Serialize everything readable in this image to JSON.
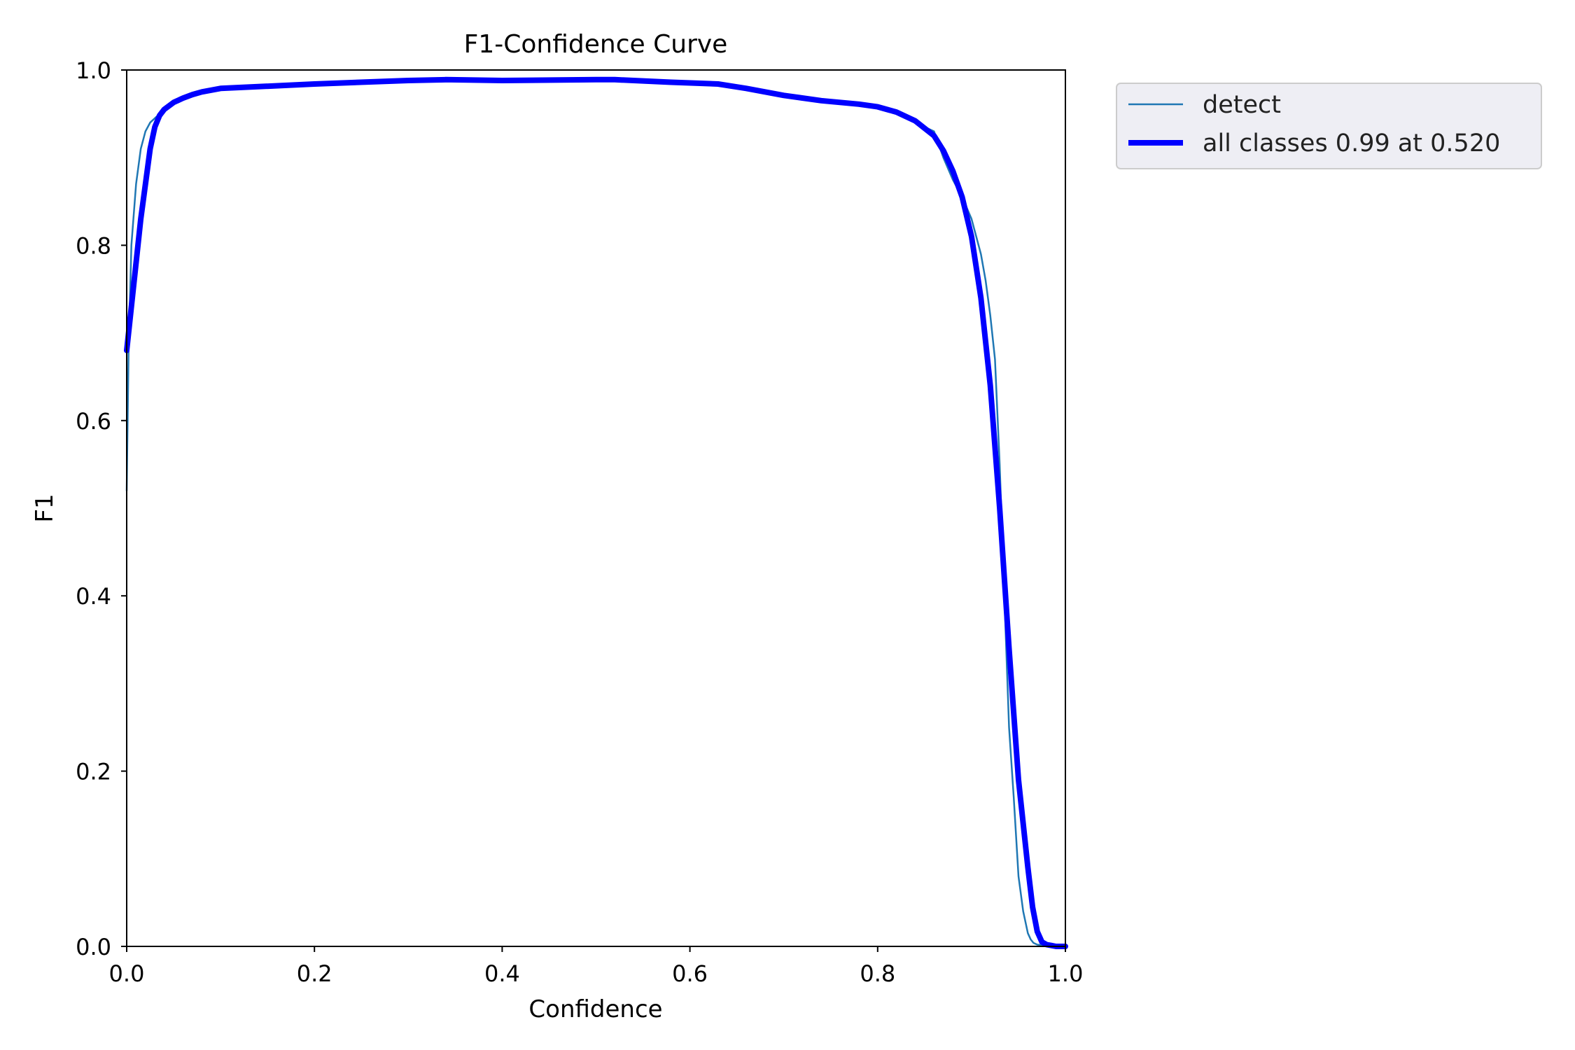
{
  "chart_data": {
    "type": "line",
    "title": "F1-Confidence Curve",
    "xlabel": "Confidence",
    "ylabel": "F1",
    "xlim": [
      0,
      1
    ],
    "ylim": [
      0,
      1
    ],
    "xticks": [
      "0.0",
      "0.2",
      "0.4",
      "0.6",
      "0.8",
      "1.0"
    ],
    "yticks": [
      "0.0",
      "0.2",
      "0.4",
      "0.6",
      "0.8",
      "1.0"
    ],
    "grid": false,
    "legend_position": "outside-top-right",
    "series": [
      {
        "name": "detect",
        "color": "#1f77b4",
        "x": [
          0.0,
          0.002,
          0.005,
          0.01,
          0.015,
          0.02,
          0.025,
          0.03,
          0.035,
          0.04,
          0.045,
          0.05,
          0.06,
          0.07,
          0.08,
          0.1,
          0.12,
          0.14,
          0.2,
          0.3,
          0.34,
          0.4,
          0.5,
          0.52,
          0.58,
          0.63,
          0.66,
          0.7,
          0.74,
          0.78,
          0.8,
          0.82,
          0.84,
          0.86,
          0.87,
          0.88,
          0.89,
          0.9,
          0.91,
          0.915,
          0.92,
          0.925,
          0.93,
          0.935,
          0.94,
          0.945,
          0.95,
          0.955,
          0.96,
          0.963,
          0.966,
          0.97,
          0.98,
          1.0
        ],
        "y": [
          0.52,
          0.68,
          0.8,
          0.87,
          0.91,
          0.93,
          0.94,
          0.945,
          0.95,
          0.955,
          0.96,
          0.963,
          0.967,
          0.972,
          0.976,
          0.98,
          0.981,
          0.982,
          0.985,
          0.988,
          0.989,
          0.988,
          0.989,
          0.989,
          0.986,
          0.984,
          0.978,
          0.97,
          0.964,
          0.96,
          0.957,
          0.95,
          0.94,
          0.93,
          0.9,
          0.875,
          0.855,
          0.83,
          0.79,
          0.76,
          0.72,
          0.67,
          0.55,
          0.4,
          0.25,
          0.17,
          0.08,
          0.04,
          0.015,
          0.008,
          0.004,
          0.002,
          0.001,
          0.0
        ]
      },
      {
        "name": "all classes 0.99 at 0.520",
        "color": "#0000ff",
        "x": [
          0.0,
          0.005,
          0.01,
          0.015,
          0.02,
          0.025,
          0.03,
          0.035,
          0.04,
          0.05,
          0.06,
          0.07,
          0.08,
          0.1,
          0.12,
          0.14,
          0.2,
          0.3,
          0.34,
          0.4,
          0.5,
          0.52,
          0.58,
          0.63,
          0.66,
          0.7,
          0.74,
          0.78,
          0.8,
          0.82,
          0.84,
          0.86,
          0.87,
          0.88,
          0.89,
          0.9,
          0.91,
          0.92,
          0.93,
          0.94,
          0.95,
          0.96,
          0.965,
          0.97,
          0.975,
          0.98,
          0.985,
          0.99,
          1.0
        ],
        "y": [
          0.68,
          0.73,
          0.78,
          0.83,
          0.87,
          0.91,
          0.935,
          0.948,
          0.955,
          0.963,
          0.968,
          0.972,
          0.975,
          0.979,
          0.98,
          0.981,
          0.984,
          0.988,
          0.989,
          0.988,
          0.989,
          0.989,
          0.986,
          0.984,
          0.979,
          0.971,
          0.965,
          0.961,
          0.958,
          0.952,
          0.942,
          0.925,
          0.908,
          0.885,
          0.855,
          0.81,
          0.74,
          0.64,
          0.5,
          0.34,
          0.19,
          0.09,
          0.045,
          0.017,
          0.005,
          0.002,
          0.001,
          0.0,
          0.0
        ]
      }
    ]
  }
}
